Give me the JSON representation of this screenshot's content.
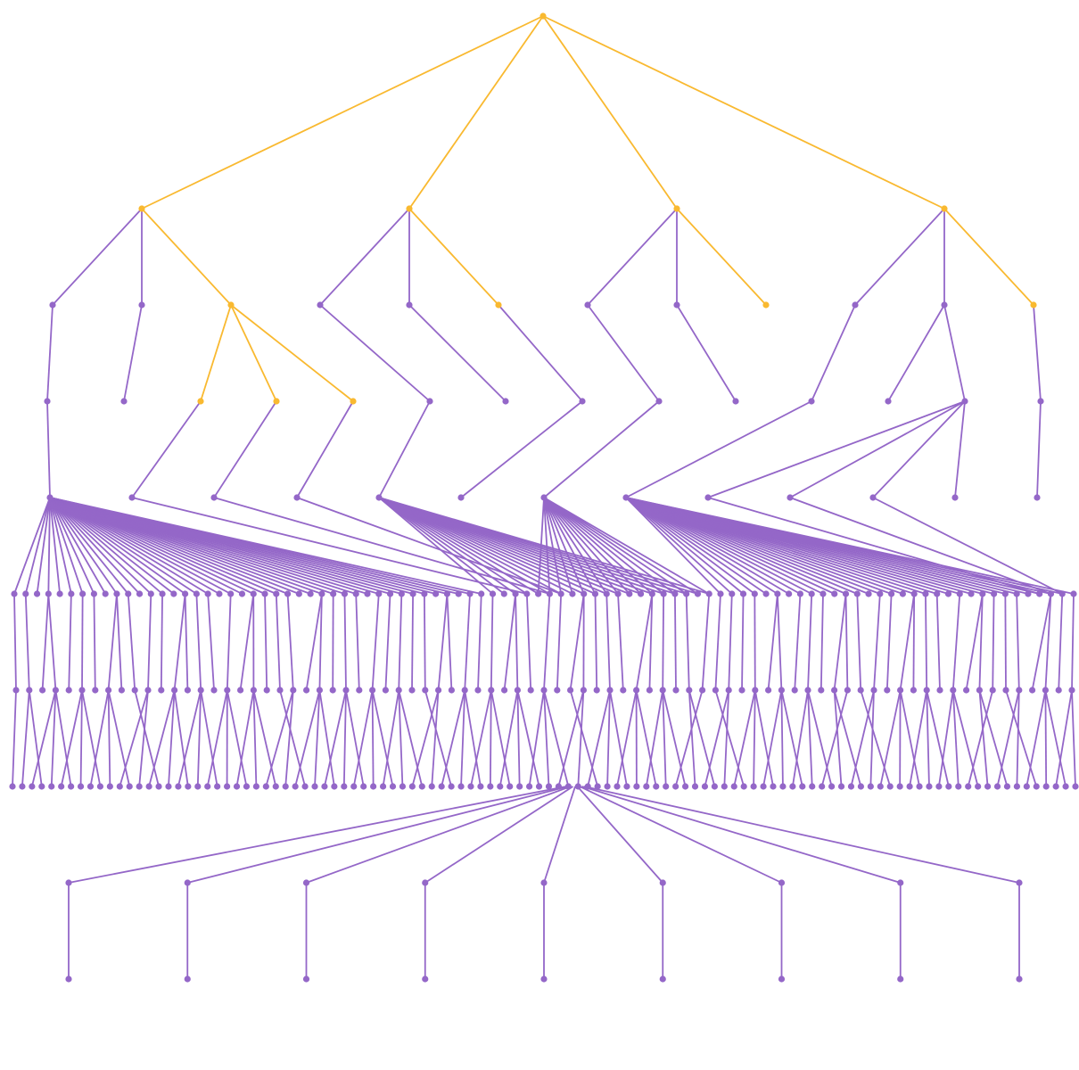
{
  "diagram": {
    "type": "tree",
    "colors": {
      "highlight": "#f9b930",
      "default": "#9467c8",
      "background": "#ffffff"
    },
    "highlighted_path_count": 9,
    "root": {
      "id": "root",
      "highlight": true,
      "children": [
        {
          "id": "a",
          "highlight": true,
          "children": [
            {
              "id": "a1",
              "highlight": false,
              "children": [
                {
                  "id": "a1-1",
                  "highlight": false,
                  "children": [
                    {
                      "id": "hub-a",
                      "highlight": false,
                      "fanout": 42
                    }
                  ]
                }
              ]
            },
            {
              "id": "a2",
              "highlight": false,
              "children": [
                {
                  "id": "a2-1",
                  "highlight": false,
                  "children": []
                }
              ]
            },
            {
              "id": "a3",
              "highlight": true,
              "children": [
                {
                  "id": "a3-1",
                  "highlight": true,
                  "children": [
                    {
                      "id": "a3-1-1",
                      "highlight": false,
                      "fanout": 1
                    }
                  ]
                },
                {
                  "id": "a3-2",
                  "highlight": true,
                  "children": [
                    {
                      "id": "a3-2-1",
                      "highlight": false,
                      "fanout": 1
                    }
                  ]
                },
                {
                  "id": "a3-3",
                  "highlight": true,
                  "children": [
                    {
                      "id": "a3-3-1",
                      "highlight": false,
                      "fanout": 1
                    }
                  ]
                }
              ]
            }
          ]
        },
        {
          "id": "b",
          "highlight": true,
          "children": [
            {
              "id": "b1",
              "highlight": false,
              "children": [
                {
                  "id": "b1-1",
                  "highlight": false,
                  "children": [
                    {
                      "id": "hub-b",
                      "highlight": false,
                      "fanout": 20
                    }
                  ]
                }
              ]
            },
            {
              "id": "b2",
              "highlight": false,
              "children": [
                {
                  "id": "b2-1",
                  "highlight": false,
                  "children": []
                }
              ]
            },
            {
              "id": "b3",
              "highlight": true,
              "children": [
                {
                  "id": "b3-1",
                  "highlight": false,
                  "children": [
                    {
                      "id": "b3-1-1",
                      "highlight": false,
                      "fanout": 0
                    }
                  ]
                }
              ]
            }
          ]
        },
        {
          "id": "c",
          "highlight": true,
          "children": [
            {
              "id": "c1",
              "highlight": false,
              "children": [
                {
                  "id": "c1-1",
                  "highlight": false,
                  "children": [
                    {
                      "id": "hub-c",
                      "highlight": false,
                      "fanout": 16
                    }
                  ]
                }
              ]
            },
            {
              "id": "c2",
              "highlight": false,
              "children": [
                {
                  "id": "c2-1",
                  "highlight": false,
                  "children": []
                }
              ]
            },
            {
              "id": "c3",
              "highlight": true,
              "children": []
            }
          ]
        },
        {
          "id": "d",
          "highlight": true,
          "children": [
            {
              "id": "d1",
              "highlight": false,
              "children": [
                {
                  "id": "d1-1",
                  "highlight": false,
                  "children": [
                    {
                      "id": "hub-d",
                      "highlight": false,
                      "fanout": 38
                    }
                  ]
                }
              ]
            },
            {
              "id": "d2",
              "highlight": false,
              "children": [
                {
                  "id": "d2-1",
                  "highlight": false,
                  "children": []
                },
                {
                  "id": "d2-2",
                  "highlight": false,
                  "children": [
                    {
                      "id": "d2-2-1",
                      "highlight": false,
                      "fanout": 1
                    },
                    {
                      "id": "d2-2-2",
                      "highlight": false,
                      "fanout": 1
                    },
                    {
                      "id": "d2-2-3",
                      "highlight": false,
                      "fanout": 1
                    },
                    {
                      "id": "d2-2-4",
                      "highlight": false,
                      "fanout": 0
                    }
                  ]
                }
              ]
            },
            {
              "id": "d3",
              "highlight": true,
              "children": [
                {
                  "id": "d3-1",
                  "highlight": false,
                  "children": [
                    {
                      "id": "d3-1-1",
                      "highlight": false,
                      "fanout": 0
                    }
                  ]
                }
              ]
            }
          ]
        }
      ]
    },
    "level6_count": 94,
    "level7_count": 81,
    "level8_count": 110,
    "sink_children": 9
  }
}
